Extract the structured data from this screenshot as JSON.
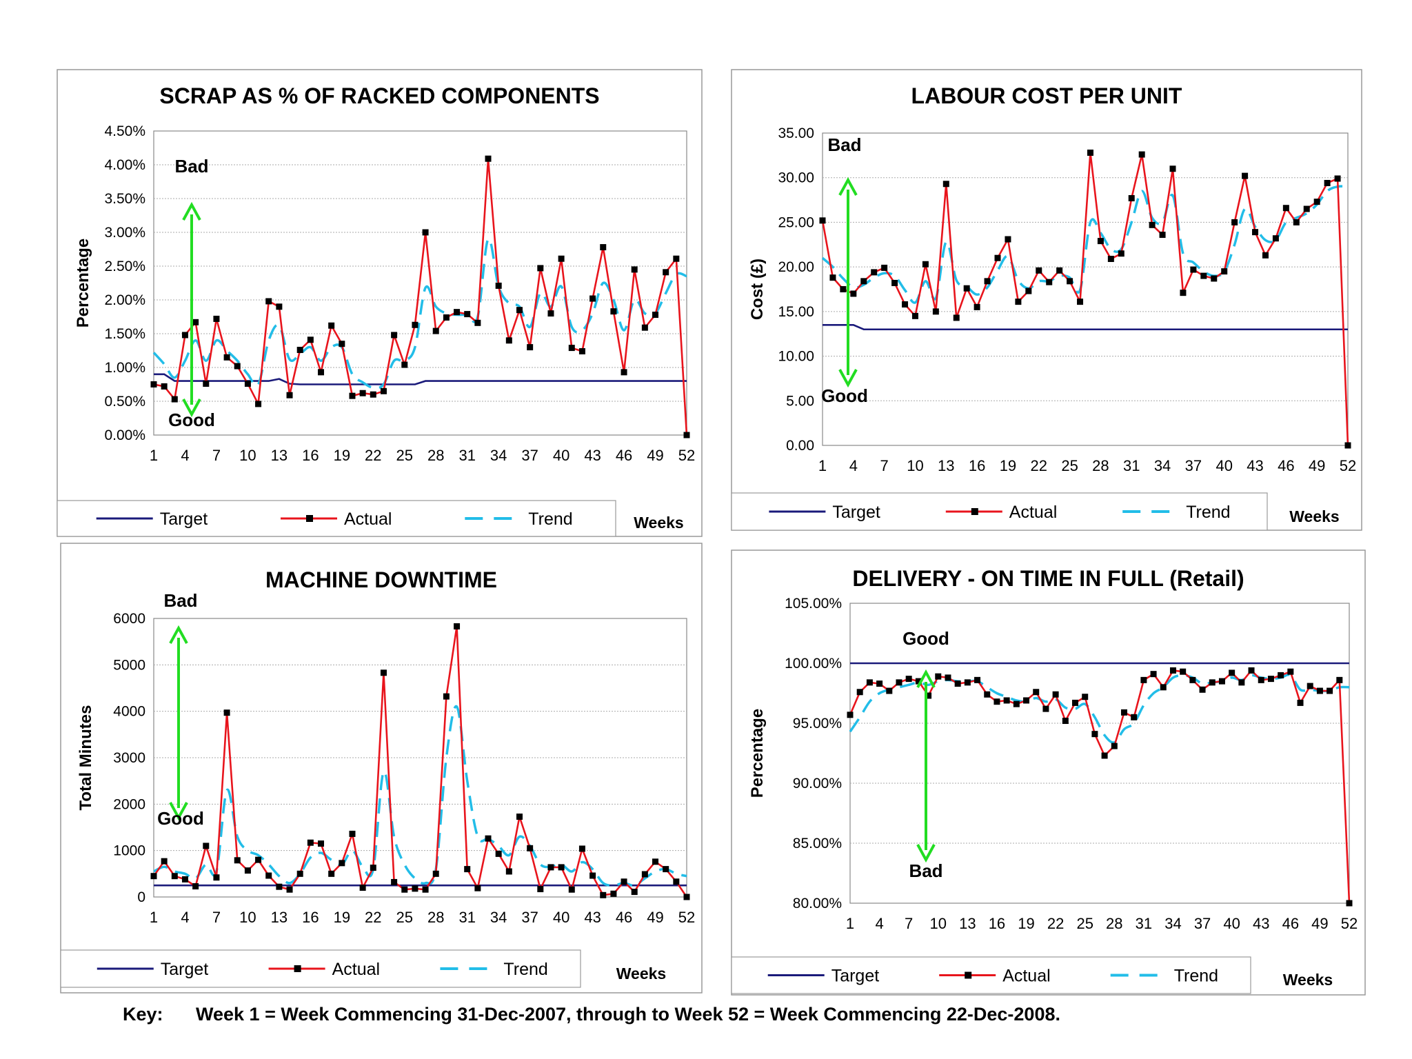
{
  "footer": {
    "key_label": "Key:",
    "key_text": "Week 1 = Week Commencing 31-Dec-2007, through to Week 52 = Week Commencing 22-Dec-2008."
  },
  "chart_data": [
    {
      "id": "scrap",
      "type": "line",
      "title": "SCRAP AS % OF RACKED COMPONENTS",
      "xlabel": "Weeks",
      "ylabel": "Percentage",
      "ylim": [
        0,
        0.045
      ],
      "yticks": [
        "0.00%",
        "0.50%",
        "1.00%",
        "1.50%",
        "2.00%",
        "2.50%",
        "3.00%",
        "3.50%",
        "4.00%",
        "4.50%"
      ],
      "xticks": [
        "1",
        "4",
        "7",
        "10",
        "13",
        "16",
        "19",
        "22",
        "25",
        "28",
        "31",
        "34",
        "37",
        "40",
        "43",
        "46",
        "49",
        "52"
      ],
      "grid": true,
      "legend_position": "bottom",
      "arrow": {
        "top_label": "Bad",
        "bottom_label": "Good",
        "color": "#22dd22"
      },
      "series": [
        {
          "name": "Target",
          "color": "#1a1a7a",
          "values": [
            0.009,
            0.009,
            0.008,
            0.008,
            0.008,
            0.008,
            0.008,
            0.008,
            0.008,
            0.008,
            0.008,
            0.008,
            0.0083,
            0.0076,
            0.0075,
            0.0075,
            0.0075,
            0.0075,
            0.0075,
            0.0075,
            0.0075,
            0.0075,
            0.0075,
            0.0075,
            0.0075,
            0.0075,
            0.008,
            0.008,
            0.008,
            0.008,
            0.008,
            0.008,
            0.008,
            0.008,
            0.008,
            0.008,
            0.008,
            0.008,
            0.008,
            0.008,
            0.008,
            0.008,
            0.008,
            0.008,
            0.008,
            0.008,
            0.008,
            0.008,
            0.008,
            0.008,
            0.008,
            0.008
          ]
        },
        {
          "name": "Actual",
          "color": "#e8141c",
          "values": [
            0.0075,
            0.0072,
            0.0053,
            0.0148,
            0.0167,
            0.0076,
            0.0172,
            0.0115,
            0.0102,
            0.0076,
            0.0046,
            0.0198,
            0.019,
            0.0059,
            0.0126,
            0.0141,
            0.0093,
            0.0162,
            0.0135,
            0.0058,
            0.0062,
            0.006,
            0.0065,
            0.0148,
            0.0104,
            0.0163,
            0.03,
            0.0154,
            0.0174,
            0.0182,
            0.0179,
            0.0166,
            0.0409,
            0.0221,
            0.014,
            0.0185,
            0.013,
            0.0247,
            0.018,
            0.0261,
            0.0129,
            0.0124,
            0.0202,
            0.0278,
            0.0183,
            0.0093,
            0.0245,
            0.0159,
            0.0178,
            0.0241,
            0.0261,
            0.0
          ]
        },
        {
          "name": "Trend",
          "color": "#22bde8",
          "values": [
            0.0122,
            0.0105,
            0.0085,
            0.011,
            0.014,
            0.011,
            0.014,
            0.0125,
            0.011,
            0.009,
            0.0075,
            0.014,
            0.0162,
            0.0112,
            0.012,
            0.013,
            0.011,
            0.013,
            0.013,
            0.009,
            0.0078,
            0.007,
            0.0075,
            0.011,
            0.011,
            0.013,
            0.0218,
            0.019,
            0.018,
            0.0178,
            0.0178,
            0.0175,
            0.029,
            0.022,
            0.0195,
            0.019,
            0.016,
            0.021,
            0.019,
            0.022,
            0.016,
            0.0155,
            0.018,
            0.0225,
            0.02,
            0.0155,
            0.02,
            0.018,
            0.018,
            0.021,
            0.0238,
            0.0235
          ]
        }
      ]
    },
    {
      "id": "labour",
      "type": "line",
      "title": "LABOUR COST PER UNIT",
      "xlabel": "Weeks",
      "ylabel": "Cost (£)",
      "ylim": [
        0,
        35
      ],
      "yticks": [
        "0.00",
        "5.00",
        "10.00",
        "15.00",
        "20.00",
        "25.00",
        "30.00",
        "35.00"
      ],
      "xticks": [
        "1",
        "4",
        "7",
        "10",
        "13",
        "16",
        "19",
        "22",
        "25",
        "28",
        "31",
        "34",
        "37",
        "40",
        "43",
        "46",
        "49",
        "52"
      ],
      "grid": true,
      "legend_position": "bottom",
      "arrow": {
        "top_label": "Bad",
        "bottom_label": "Good",
        "color": "#22dd22"
      },
      "series": [
        {
          "name": "Target",
          "color": "#1a1a7a",
          "values": [
            13.5,
            13.5,
            13.5,
            13.5,
            13.0,
            13.0,
            13.0,
            13.0,
            13.0,
            13.0,
            13.0,
            13.0,
            13.0,
            13.0,
            13.0,
            13.0,
            13.0,
            13.0,
            13.0,
            13.0,
            13.0,
            13.0,
            13.0,
            13.0,
            13.0,
            13.0,
            13.0,
            13.0,
            13.0,
            13.0,
            13.0,
            13.0,
            13.0,
            13.0,
            13.0,
            13.0,
            13.0,
            13.0,
            13.0,
            13.0,
            13.0,
            13.0,
            13.0,
            13.0,
            13.0,
            13.0,
            13.0,
            13.0,
            13.0,
            13.0,
            13.0,
            13.0
          ]
        },
        {
          "name": "Actual",
          "color": "#e8141c",
          "values": [
            25.2,
            18.8,
            17.5,
            17.0,
            18.4,
            19.4,
            19.9,
            18.2,
            15.8,
            14.5,
            20.3,
            15.0,
            29.3,
            14.3,
            17.6,
            15.5,
            18.4,
            21.0,
            23.1,
            16.1,
            17.3,
            19.6,
            18.3,
            19.6,
            18.4,
            16.1,
            32.8,
            22.9,
            20.9,
            21.5,
            27.7,
            32.6,
            24.7,
            23.6,
            31.0,
            17.1,
            19.7,
            19.0,
            18.7,
            19.5,
            25.0,
            30.2,
            23.9,
            21.3,
            23.2,
            26.6,
            25.0,
            26.5,
            27.3,
            29.4,
            29.9,
            0.0
          ]
        },
        {
          "name": "Trend",
          "color": "#22bde8",
          "values": [
            21.0,
            20.0,
            18.7,
            17.7,
            18.0,
            18.8,
            19.3,
            19.0,
            17.4,
            16.0,
            18.4,
            16.5,
            22.8,
            18.5,
            17.8,
            16.9,
            17.7,
            19.6,
            21.2,
            18.5,
            17.6,
            18.4,
            18.4,
            19.0,
            18.8,
            17.4,
            25.0,
            23.8,
            22.0,
            22.0,
            25.0,
            28.5,
            25.5,
            25.0,
            28.0,
            21.5,
            20.5,
            19.5,
            19.0,
            19.5,
            22.5,
            26.5,
            24.5,
            23.0,
            23.0,
            25.0,
            25.5,
            26.0,
            27.0,
            28.5,
            29.0,
            29.0
          ]
        }
      ]
    },
    {
      "id": "downtime",
      "type": "line",
      "title": "MACHINE DOWNTIME",
      "xlabel": "Weeks",
      "ylabel": "Total Minutes",
      "ylim": [
        0,
        6000
      ],
      "yticks": [
        "0",
        "1000",
        "2000",
        "3000",
        "4000",
        "5000",
        "6000"
      ],
      "xticks": [
        "1",
        "4",
        "7",
        "10",
        "13",
        "16",
        "19",
        "22",
        "25",
        "28",
        "31",
        "34",
        "37",
        "40",
        "43",
        "46",
        "49",
        "52"
      ],
      "grid": true,
      "legend_position": "bottom",
      "arrow": {
        "top_label": "Bad",
        "bottom_label": "Good",
        "color": "#22dd22"
      },
      "series": [
        {
          "name": "Target",
          "color": "#1a1a7a",
          "values": [
            250,
            250,
            250,
            250,
            250,
            250,
            250,
            250,
            250,
            250,
            250,
            250,
            250,
            250,
            250,
            250,
            250,
            250,
            250,
            250,
            250,
            250,
            250,
            250,
            250,
            250,
            250,
            250,
            250,
            250,
            250,
            250,
            250,
            250,
            250,
            250,
            250,
            250,
            250,
            250,
            250,
            250,
            250,
            250,
            250,
            250,
            250,
            250,
            250,
            250,
            250,
            250
          ]
        },
        {
          "name": "Actual",
          "color": "#e8141c",
          "values": [
            450,
            770,
            450,
            380,
            230,
            1100,
            420,
            3970,
            790,
            570,
            800,
            460,
            220,
            160,
            500,
            1170,
            1150,
            500,
            730,
            1360,
            200,
            630,
            4830,
            320,
            160,
            180,
            160,
            500,
            4320,
            5830,
            600,
            190,
            1260,
            930,
            550,
            1730,
            1050,
            170,
            640,
            640,
            160,
            1040,
            460,
            40,
            70,
            330,
            110,
            490,
            760,
            600,
            330,
            0
          ]
        },
        {
          "name": "Trend",
          "color": "#22bde8",
          "values": [
            550,
            650,
            550,
            500,
            400,
            700,
            550,
            2300,
            1300,
            1000,
            900,
            700,
            450,
            300,
            500,
            850,
            950,
            800,
            700,
            1000,
            650,
            600,
            2700,
            1300,
            700,
            400,
            300,
            600,
            3000,
            4100,
            2500,
            1300,
            1250,
            1100,
            900,
            1300,
            1100,
            700,
            650,
            700,
            550,
            750,
            600,
            300,
            250,
            300,
            250,
            400,
            550,
            600,
            500,
            450
          ]
        }
      ]
    },
    {
      "id": "delivery",
      "type": "line",
      "title": "DELIVERY - ON TIME IN FULL (Retail)",
      "xlabel": "Weeks",
      "ylabel": "Percentage",
      "ylim": [
        0.8,
        1.05
      ],
      "yticks": [
        "80.00%",
        "85.00%",
        "90.00%",
        "95.00%",
        "100.00%",
        "105.00%"
      ],
      "xticks": [
        "1",
        "4",
        "7",
        "10",
        "13",
        "16",
        "19",
        "22",
        "25",
        "28",
        "31",
        "34",
        "37",
        "40",
        "43",
        "46",
        "49",
        "52"
      ],
      "grid": true,
      "legend_position": "bottom",
      "arrow": {
        "top_label": "Good",
        "bottom_label": "Bad",
        "color": "#22dd22"
      },
      "series": [
        {
          "name": "Target",
          "color": "#1a1a7a",
          "values": [
            1.0,
            1.0,
            1.0,
            1.0,
            1.0,
            1.0,
            1.0,
            1.0,
            1.0,
            1.0,
            1.0,
            1.0,
            1.0,
            1.0,
            1.0,
            1.0,
            1.0,
            1.0,
            1.0,
            1.0,
            1.0,
            1.0,
            1.0,
            1.0,
            1.0,
            1.0,
            1.0,
            1.0,
            1.0,
            1.0,
            1.0,
            1.0,
            1.0,
            1.0,
            1.0,
            1.0,
            1.0,
            1.0,
            1.0,
            1.0,
            1.0,
            1.0,
            1.0,
            1.0,
            1.0,
            1.0,
            1.0,
            1.0,
            1.0,
            1.0,
            1.0,
            1.0
          ]
        },
        {
          "name": "Actual",
          "color": "#e8141c",
          "values": [
            0.957,
            0.976,
            0.984,
            0.983,
            0.977,
            0.984,
            0.987,
            0.985,
            0.973,
            0.989,
            0.988,
            0.983,
            0.984,
            0.986,
            0.974,
            0.968,
            0.969,
            0.966,
            0.969,
            0.976,
            0.962,
            0.974,
            0.952,
            0.967,
            0.972,
            0.941,
            0.923,
            0.931,
            0.959,
            0.955,
            0.986,
            0.991,
            0.98,
            0.994,
            0.993,
            0.986,
            0.978,
            0.984,
            0.985,
            0.992,
            0.984,
            0.994,
            0.986,
            0.987,
            0.99,
            0.993,
            0.967,
            0.981,
            0.977,
            0.977,
            0.986,
            0.8
          ]
        },
        {
          "name": "Trend",
          "color": "#22bde8",
          "values": [
            0.943,
            0.955,
            0.968,
            0.975,
            0.978,
            0.98,
            0.982,
            0.984,
            0.982,
            0.985,
            0.986,
            0.985,
            0.985,
            0.985,
            0.98,
            0.975,
            0.972,
            0.969,
            0.968,
            0.971,
            0.968,
            0.97,
            0.963,
            0.962,
            0.966,
            0.955,
            0.94,
            0.934,
            0.945,
            0.95,
            0.965,
            0.975,
            0.98,
            0.988,
            0.99,
            0.988,
            0.983,
            0.984,
            0.985,
            0.988,
            0.986,
            0.99,
            0.988,
            0.987,
            0.988,
            0.99,
            0.978,
            0.978,
            0.977,
            0.977,
            0.98,
            0.98
          ]
        }
      ]
    }
  ]
}
